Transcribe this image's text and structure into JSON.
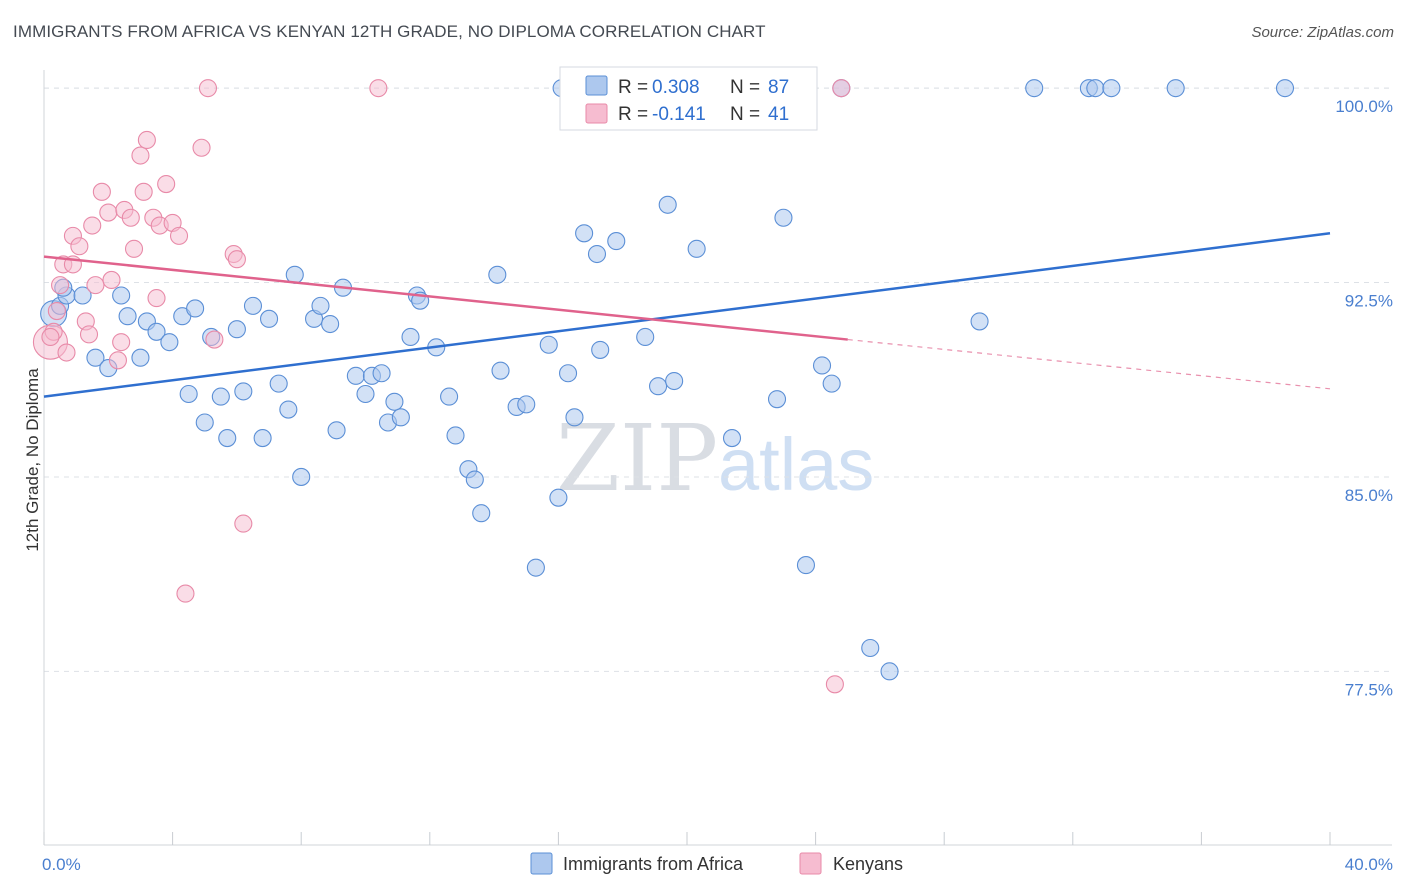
{
  "header": {
    "title": "IMMIGRANTS FROM AFRICA VS KENYAN 12TH GRADE, NO DIPLOMA CORRELATION CHART",
    "source": "Source: ZipAtlas.com"
  },
  "watermark": {
    "zip": "ZIP",
    "atlas": "atlas"
  },
  "legend": {
    "rows": [
      {
        "r_label": "R = ",
        "r_value": "0.308",
        "n_label": "N = ",
        "n_value": "87"
      },
      {
        "r_label": "R = ",
        "r_value": "-0.141",
        "n_label": "N = ",
        "n_value": "41"
      }
    ]
  },
  "colors": {
    "blue_fill": "#adc8ee",
    "blue_stroke": "#5b8fd6",
    "blue_line": "#2f6fcf",
    "pink_fill": "#f6bcd0",
    "pink_stroke": "#e88aa8",
    "pink_line": "#e0628c",
    "tick_text": "#4a7fcf",
    "grid": "#dde1e6"
  },
  "chart_data": {
    "type": "scatter",
    "title": "IMMIGRANTS FROM AFRICA VS KENYAN 12TH GRADE, NO DIPLOMA CORRELATION CHART",
    "xlabel": "",
    "ylabel": "12th Grade, No Diploma",
    "xlim": [
      0,
      40
    ],
    "ylim": [
      70.8,
      100.7
    ],
    "x_tick_labels": [
      "0.0%",
      "40.0%"
    ],
    "y_ticks": [
      77.5,
      85.0,
      92.5,
      100.0
    ],
    "y_tick_labels": [
      "77.5%",
      "85.0%",
      "92.5%",
      "100.0%"
    ],
    "grid": true,
    "legend_position": "top-center",
    "series": [
      {
        "name": "Immigrants from Africa",
        "color": "blue",
        "r": 0.308,
        "n": 87,
        "trend": {
          "x": [
            0,
            40
          ],
          "y": [
            88.1,
            94.4
          ]
        },
        "points": [
          [
            0.3,
            91.3
          ],
          [
            0.5,
            91.6
          ],
          [
            0.7,
            92.0
          ],
          [
            1.2,
            92.0
          ],
          [
            0.6,
            92.3
          ],
          [
            1.6,
            89.6
          ],
          [
            2.0,
            89.2
          ],
          [
            2.4,
            92.0
          ],
          [
            2.6,
            91.2
          ],
          [
            3.0,
            89.6
          ],
          [
            3.2,
            91.0
          ],
          [
            3.5,
            90.6
          ],
          [
            3.9,
            90.2
          ],
          [
            4.3,
            91.2
          ],
          [
            4.5,
            88.2
          ],
          [
            4.7,
            91.5
          ],
          [
            5.0,
            87.1
          ],
          [
            5.2,
            90.4
          ],
          [
            5.5,
            88.1
          ],
          [
            5.7,
            86.5
          ],
          [
            6.0,
            90.7
          ],
          [
            6.2,
            88.3
          ],
          [
            6.5,
            91.6
          ],
          [
            6.8,
            86.5
          ],
          [
            7.0,
            91.1
          ],
          [
            7.3,
            88.6
          ],
          [
            7.6,
            87.6
          ],
          [
            7.8,
            92.8
          ],
          [
            8.0,
            85.0
          ],
          [
            8.4,
            91.1
          ],
          [
            8.6,
            91.6
          ],
          [
            8.9,
            90.9
          ],
          [
            9.1,
            86.8
          ],
          [
            9.3,
            92.3
          ],
          [
            9.7,
            88.9
          ],
          [
            10.0,
            88.2
          ],
          [
            10.2,
            88.9
          ],
          [
            10.5,
            89.0
          ],
          [
            10.7,
            87.1
          ],
          [
            10.9,
            87.9
          ],
          [
            11.1,
            87.3
          ],
          [
            11.4,
            90.4
          ],
          [
            11.6,
            92.0
          ],
          [
            11.7,
            91.8
          ],
          [
            12.2,
            90.0
          ],
          [
            12.6,
            88.1
          ],
          [
            12.8,
            86.6
          ],
          [
            13.2,
            85.3
          ],
          [
            13.4,
            84.9
          ],
          [
            13.6,
            83.6
          ],
          [
            14.1,
            92.8
          ],
          [
            14.2,
            89.1
          ],
          [
            14.7,
            87.7
          ],
          [
            15.0,
            87.8
          ],
          [
            15.3,
            81.5
          ],
          [
            15.7,
            90.1
          ],
          [
            16.0,
            84.2
          ],
          [
            16.3,
            89.0
          ],
          [
            16.5,
            87.3
          ],
          [
            16.8,
            94.4
          ],
          [
            17.2,
            93.6
          ],
          [
            17.3,
            89.9
          ],
          [
            17.8,
            94.1
          ],
          [
            18.7,
            90.4
          ],
          [
            19.1,
            88.5
          ],
          [
            19.4,
            95.5
          ],
          [
            19.6,
            88.7
          ],
          [
            20.3,
            93.8
          ],
          [
            21.4,
            86.5
          ],
          [
            22.8,
            88.0
          ],
          [
            23.0,
            95.0
          ],
          [
            23.7,
            81.6
          ],
          [
            24.2,
            89.3
          ],
          [
            24.5,
            88.6
          ],
          [
            24.8,
            100.0
          ],
          [
            25.7,
            78.4
          ],
          [
            26.3,
            77.5
          ],
          [
            29.1,
            91.0
          ],
          [
            30.8,
            100.0
          ],
          [
            32.5,
            100.0
          ],
          [
            32.7,
            100.0
          ],
          [
            33.2,
            100.0
          ],
          [
            35.2,
            100.0
          ],
          [
            38.6,
            100.0
          ],
          [
            19.7,
            100.0
          ],
          [
            21.3,
            100.0
          ],
          [
            16.1,
            100.0
          ]
        ]
      },
      {
        "name": "Kenyans",
        "color": "pink",
        "r": -0.141,
        "n": 41,
        "trend": {
          "x": [
            0,
            25
          ],
          "y": [
            93.5,
            90.3
          ],
          "dashed_to": [
            40,
            88.4
          ]
        },
        "points": [
          [
            0.2,
            90.2
          ],
          [
            0.3,
            90.6
          ],
          [
            0.4,
            91.4
          ],
          [
            0.5,
            92.4
          ],
          [
            0.6,
            93.2
          ],
          [
            0.7,
            89.8
          ],
          [
            0.9,
            93.2
          ],
          [
            0.9,
            94.3
          ],
          [
            1.1,
            93.9
          ],
          [
            1.3,
            91.0
          ],
          [
            1.4,
            90.5
          ],
          [
            1.5,
            94.7
          ],
          [
            1.6,
            92.4
          ],
          [
            1.8,
            96.0
          ],
          [
            2.0,
            95.2
          ],
          [
            2.1,
            92.6
          ],
          [
            2.3,
            89.5
          ],
          [
            2.4,
            90.2
          ],
          [
            2.5,
            95.3
          ],
          [
            2.7,
            95.0
          ],
          [
            2.8,
            93.8
          ],
          [
            3.0,
            97.4
          ],
          [
            3.1,
            96.0
          ],
          [
            3.2,
            98.0
          ],
          [
            3.4,
            95.0
          ],
          [
            3.5,
            91.9
          ],
          [
            3.6,
            94.7
          ],
          [
            3.8,
            96.3
          ],
          [
            4.0,
            94.8
          ],
          [
            4.2,
            94.3
          ],
          [
            4.4,
            80.5
          ],
          [
            4.9,
            97.7
          ],
          [
            5.1,
            100.0
          ],
          [
            5.3,
            90.3
          ],
          [
            5.9,
            93.6
          ],
          [
            6.0,
            93.4
          ],
          [
            6.2,
            83.2
          ],
          [
            10.4,
            100.0
          ],
          [
            24.8,
            100.0
          ],
          [
            24.6,
            77.0
          ],
          [
            0.2,
            90.4
          ]
        ]
      }
    ]
  },
  "bottom_legend": {
    "items": [
      {
        "label": "Immigrants from Africa"
      },
      {
        "label": "Kenyans"
      }
    ]
  }
}
